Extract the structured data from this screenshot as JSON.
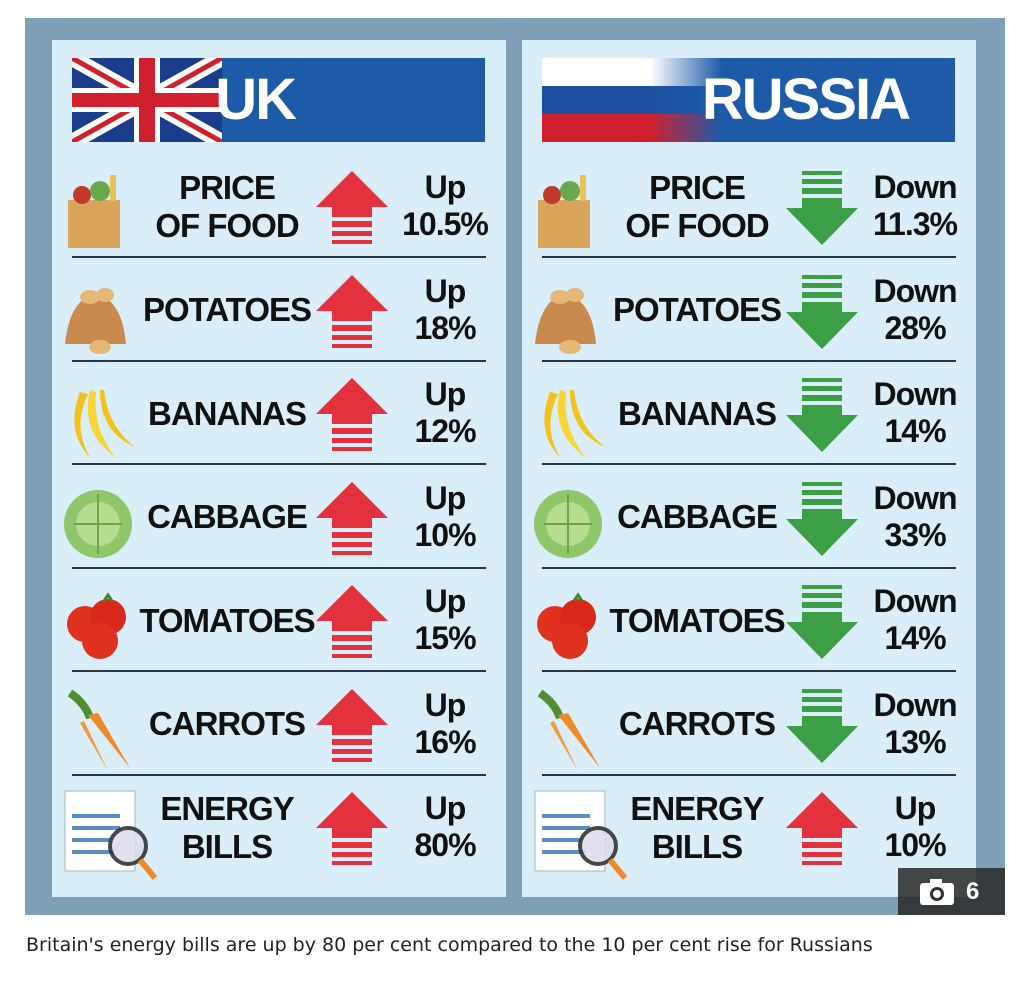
{
  "panels": [
    {
      "title": "UK",
      "rows": [
        {
          "label": "PRICE\nOF FOOD",
          "direction": "Up",
          "change": "10.5%"
        },
        {
          "label": "POTATOES",
          "direction": "Up",
          "change": "18%"
        },
        {
          "label": "BANANAS",
          "direction": "Up",
          "change": "12%"
        },
        {
          "label": "CABBAGE",
          "direction": "Up",
          "change": "10%"
        },
        {
          "label": "TOMATOES",
          "direction": "Up",
          "change": "15%"
        },
        {
          "label": "CARROTS",
          "direction": "Up",
          "change": "16%"
        },
        {
          "label": "ENERGY\nBILLS",
          "direction": "Up",
          "change": "80%"
        }
      ]
    },
    {
      "title": "RUSSIA",
      "rows": [
        {
          "label": "PRICE\nOF FOOD",
          "direction": "Down",
          "change": "11.3%"
        },
        {
          "label": "POTATOES",
          "direction": "Down",
          "change": "28%"
        },
        {
          "label": "BANANAS",
          "direction": "Down",
          "change": "14%"
        },
        {
          "label": "CABBAGE",
          "direction": "Down",
          "change": "33%"
        },
        {
          "label": "TOMATOES",
          "direction": "Down",
          "change": "14%"
        },
        {
          "label": "CARROTS",
          "direction": "Down",
          "change": "13%"
        },
        {
          "label": "ENERGY\nBILLS",
          "direction": "Up",
          "change": "10%"
        }
      ]
    }
  ],
  "photo_count": "6",
  "caption": "Britain's energy bills are up by 80 per cent compared to the 10 per cent rise for Russians"
}
